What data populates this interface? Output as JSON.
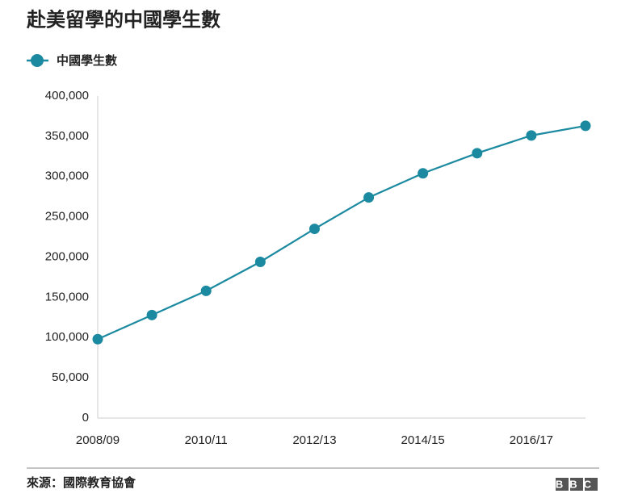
{
  "chart_data": {
    "type": "line",
    "title": "赴美留學的中國學生數",
    "categories": [
      "2008/09",
      null,
      "2010/11",
      null,
      "2012/13",
      null,
      "2014/15",
      null,
      "2016/17",
      null
    ],
    "series": [
      {
        "name": "中國學生數",
        "color": "#1b8aa0",
        "values": [
          98000,
          128000,
          158000,
          194000,
          235000,
          274000,
          304000,
          329000,
          351000,
          363000
        ]
      }
    ],
    "ylim": [
      0,
      400000
    ],
    "yticks": [
      0,
      {
        "value": 50000,
        "label": "50,000"
      },
      {
        "value": 100000,
        "label": "100,000"
      },
      {
        "value": 150000,
        "label": "150,000"
      },
      {
        "value": 200000,
        "label": "200,000"
      },
      {
        "value": 250000,
        "label": "250,000"
      },
      {
        "value": 300000,
        "label": "300,000"
      },
      {
        "value": 350000,
        "label": "350,000"
      },
      {
        "value": 400000,
        "label": "400,000"
      }
    ],
    "grid": false,
    "source": "來源：國際教育協會",
    "logo": "BBC"
  }
}
